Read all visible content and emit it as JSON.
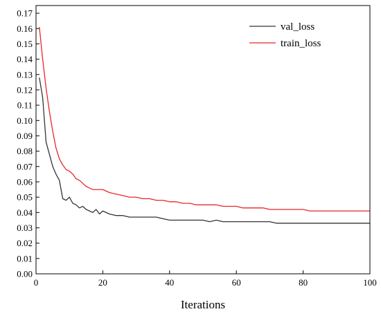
{
  "chart_data": {
    "type": "line",
    "title": "",
    "xlabel": "Iterations",
    "ylabel": "",
    "xlim": [
      0,
      100
    ],
    "ylim": [
      0,
      0.175
    ],
    "x_ticks": [
      0,
      20,
      40,
      60,
      80,
      100
    ],
    "x_tick_labels": [
      "0",
      "20",
      "40",
      "60",
      "80",
      "100"
    ],
    "y_ticks": [
      0,
      0.01,
      0.02,
      0.03,
      0.04,
      0.05,
      0.06,
      0.07,
      0.08,
      0.09,
      0.1,
      0.11,
      0.12,
      0.13,
      0.14,
      0.15,
      0.16,
      0.17
    ],
    "y_tick_labels": [
      "0.00",
      "0.01",
      "0.02",
      "0.03",
      "0.04",
      "0.05",
      "0.06",
      "0.07",
      "0.08",
      "0.09",
      "0.10",
      "0.11",
      "0.12",
      "0.13",
      "0.14",
      "0.15",
      "0.16",
      "0.17"
    ],
    "grid": false,
    "legend_position": "top-right",
    "series": [
      {
        "name": "val_loss",
        "color": "#333333",
        "x": [
          1,
          2,
          3,
          4,
          5,
          6,
          7,
          8,
          9,
          10,
          11,
          12,
          13,
          14,
          15,
          16,
          17,
          18,
          19,
          20,
          22,
          24,
          26,
          28,
          30,
          32,
          34,
          36,
          38,
          40,
          42,
          44,
          46,
          48,
          50,
          52,
          54,
          56,
          58,
          60,
          62,
          64,
          66,
          68,
          70,
          72,
          74,
          76,
          78,
          80,
          82,
          84,
          86,
          88,
          90,
          92,
          94,
          96,
          98,
          100
        ],
        "y": [
          0.128,
          0.115,
          0.086,
          0.078,
          0.07,
          0.065,
          0.061,
          0.049,
          0.048,
          0.05,
          0.046,
          0.045,
          0.043,
          0.044,
          0.042,
          0.041,
          0.04,
          0.042,
          0.039,
          0.041,
          0.039,
          0.038,
          0.038,
          0.037,
          0.037,
          0.037,
          0.037,
          0.037,
          0.036,
          0.035,
          0.035,
          0.035,
          0.035,
          0.035,
          0.035,
          0.034,
          0.035,
          0.034,
          0.034,
          0.034,
          0.034,
          0.034,
          0.034,
          0.034,
          0.034,
          0.033,
          0.033,
          0.033,
          0.033,
          0.033,
          0.033,
          0.033,
          0.033,
          0.033,
          0.033,
          0.033,
          0.033,
          0.033,
          0.033,
          0.033
        ]
      },
      {
        "name": "train_loss",
        "color": "#e8262a",
        "x": [
          1,
          2,
          3,
          4,
          5,
          6,
          7,
          8,
          9,
          10,
          11,
          12,
          13,
          14,
          15,
          16,
          17,
          18,
          19,
          20,
          22,
          24,
          26,
          28,
          30,
          32,
          34,
          36,
          38,
          40,
          42,
          44,
          46,
          48,
          50,
          52,
          54,
          56,
          58,
          60,
          62,
          64,
          66,
          68,
          70,
          72,
          74,
          76,
          78,
          80,
          82,
          84,
          86,
          88,
          90,
          92,
          94,
          96,
          98,
          100
        ],
        "y": [
          0.161,
          0.14,
          0.121,
          0.106,
          0.093,
          0.082,
          0.075,
          0.071,
          0.068,
          0.067,
          0.065,
          0.062,
          0.061,
          0.059,
          0.057,
          0.056,
          0.055,
          0.055,
          0.055,
          0.055,
          0.053,
          0.052,
          0.051,
          0.05,
          0.05,
          0.049,
          0.049,
          0.048,
          0.048,
          0.047,
          0.047,
          0.046,
          0.046,
          0.045,
          0.045,
          0.045,
          0.045,
          0.044,
          0.044,
          0.044,
          0.043,
          0.043,
          0.043,
          0.043,
          0.042,
          0.042,
          0.042,
          0.042,
          0.042,
          0.042,
          0.041,
          0.041,
          0.041,
          0.041,
          0.041,
          0.041,
          0.041,
          0.041,
          0.041,
          0.041
        ]
      }
    ]
  }
}
